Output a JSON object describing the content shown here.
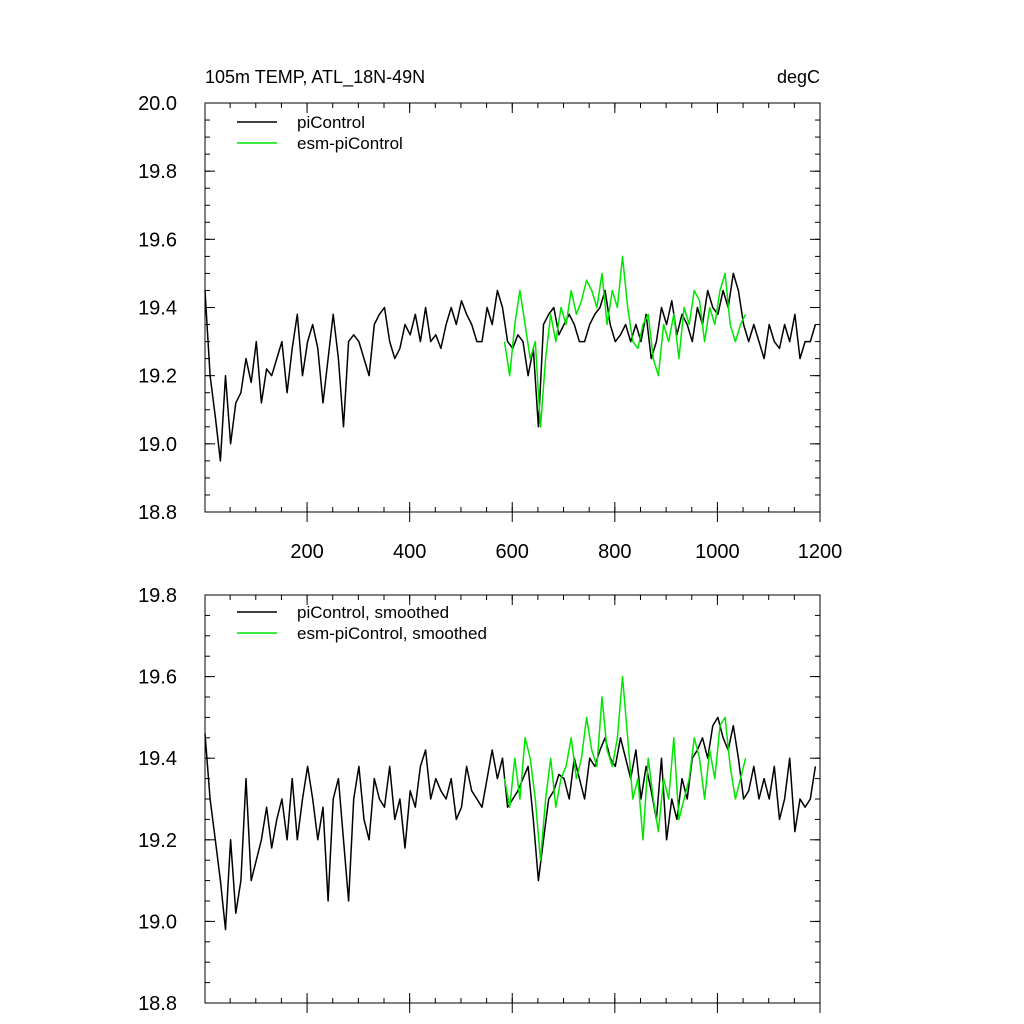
{
  "chart_data": [
    {
      "type": "line",
      "title": "105m TEMP, ATL_18N-49N",
      "units": "degC",
      "xlabel": "",
      "ylabel": "",
      "xlim": [
        1,
        1200
      ],
      "ylim": [
        18.8,
        20.0
      ],
      "x_ticks": [
        200,
        400,
        600,
        800,
        1000,
        1200
      ],
      "x_tick_labels": [
        "200",
        "400",
        "600",
        "800",
        "1000",
        "1200"
      ],
      "y_ticks": [
        18.8,
        19.0,
        19.2,
        19.4,
        19.6,
        19.8,
        20.0
      ],
      "y_tick_labels": [
        "18.8",
        "19.0",
        "19.2",
        "19.4",
        "19.6",
        "19.8",
        "20.0"
      ],
      "legend_position": "top-left",
      "series": [
        {
          "name": "piControl",
          "color": "#000000",
          "x_start": 1,
          "x_step": 10,
          "values": [
            19.45,
            19.2,
            19.08,
            18.95,
            19.2,
            19.0,
            19.12,
            19.15,
            19.25,
            19.18,
            19.3,
            19.12,
            19.22,
            19.2,
            19.25,
            19.3,
            19.15,
            19.28,
            19.38,
            19.2,
            19.3,
            19.35,
            19.28,
            19.12,
            19.25,
            19.38,
            19.25,
            19.05,
            19.3,
            19.32,
            19.3,
            19.25,
            19.2,
            19.35,
            19.38,
            19.4,
            19.3,
            19.25,
            19.28,
            19.35,
            19.32,
            19.38,
            19.3,
            19.4,
            19.3,
            19.32,
            19.28,
            19.35,
            19.4,
            19.35,
            19.42,
            19.38,
            19.35,
            19.3,
            19.3,
            19.4,
            19.35,
            19.45,
            19.4,
            19.3,
            19.28,
            19.32,
            19.3,
            19.2,
            19.28,
            19.05,
            19.35,
            19.38,
            19.4,
            19.32,
            19.35,
            19.38,
            19.35,
            19.3,
            19.3,
            19.35,
            19.38,
            19.4,
            19.45,
            19.35,
            19.3,
            19.32,
            19.35,
            19.3,
            19.35,
            19.3,
            19.38,
            19.25,
            19.3,
            19.4,
            19.35,
            19.42,
            19.32,
            19.38,
            19.35,
            19.3,
            19.4,
            19.35,
            19.45,
            19.4,
            19.38,
            19.45,
            19.4,
            19.5,
            19.45,
            19.35,
            19.3,
            19.35,
            19.3,
            19.25,
            19.35,
            19.3,
            19.28,
            19.35,
            19.3,
            19.38,
            19.25,
            19.3,
            19.3,
            19.35
          ]
        },
        {
          "name": "esm-piControl",
          "color": "#00e600",
          "x_start": 585,
          "x_step": 10,
          "values": [
            19.3,
            19.2,
            19.35,
            19.45,
            19.35,
            19.25,
            19.3,
            19.05,
            19.25,
            19.38,
            19.3,
            19.4,
            19.35,
            19.45,
            19.38,
            19.42,
            19.48,
            19.45,
            19.4,
            19.5,
            19.35,
            19.45,
            19.4,
            19.55,
            19.4,
            19.3,
            19.28,
            19.35,
            19.38,
            19.25,
            19.2,
            19.35,
            19.3,
            19.38,
            19.25,
            19.4,
            19.35,
            19.45,
            19.42,
            19.3,
            19.4,
            19.35,
            19.45,
            19.5,
            19.35,
            19.3,
            19.35,
            19.38
          ]
        }
      ]
    },
    {
      "type": "line",
      "title": "",
      "xlabel": "",
      "ylabel": "",
      "xlim": [
        1,
        1200
      ],
      "ylim": [
        18.8,
        19.8
      ],
      "x_ticks": [
        200,
        400,
        600,
        800,
        1000,
        1200
      ],
      "x_tick_labels": [],
      "y_ticks": [
        18.8,
        19.0,
        19.2,
        19.4,
        19.6,
        19.8
      ],
      "y_tick_labels": [
        "18.8",
        "19.0",
        "19.2",
        "19.4",
        "19.6",
        "19.8"
      ],
      "legend_position": "top-left",
      "series": [
        {
          "name": "piControl, smoothed",
          "color": "#000000",
          "x_start": 1,
          "x_step": 10,
          "values": [
            19.46,
            19.3,
            19.2,
            19.1,
            18.98,
            19.2,
            19.02,
            19.1,
            19.35,
            19.1,
            19.15,
            19.2,
            19.28,
            19.18,
            19.25,
            19.3,
            19.2,
            19.35,
            19.2,
            19.3,
            19.38,
            19.3,
            19.2,
            19.28,
            19.05,
            19.3,
            19.35,
            19.2,
            19.05,
            19.3,
            19.38,
            19.25,
            19.2,
            19.35,
            19.3,
            19.28,
            19.38,
            19.25,
            19.3,
            19.18,
            19.32,
            19.28,
            19.38,
            19.42,
            19.3,
            19.35,
            19.32,
            19.3,
            19.35,
            19.25,
            19.28,
            19.38,
            19.32,
            19.3,
            19.28,
            19.35,
            19.42,
            19.35,
            19.4,
            19.28,
            19.3,
            19.32,
            19.35,
            19.38,
            19.25,
            19.1,
            19.2,
            19.3,
            19.32,
            19.36,
            19.35,
            19.3,
            19.4,
            19.35,
            19.3,
            19.4,
            19.38,
            19.42,
            19.45,
            19.4,
            19.38,
            19.45,
            19.4,
            19.35,
            19.42,
            19.3,
            19.38,
            19.32,
            19.25,
            19.4,
            19.2,
            19.3,
            19.25,
            19.35,
            19.3,
            19.4,
            19.42,
            19.45,
            19.4,
            19.48,
            19.5,
            19.45,
            19.42,
            19.48,
            19.4,
            19.3,
            19.32,
            19.38,
            19.3,
            19.35,
            19.3,
            19.38,
            19.25,
            19.3,
            19.4,
            19.22,
            19.3,
            19.28,
            19.3,
            19.38
          ]
        },
        {
          "name": "esm-piControl, smoothed",
          "color": "#00e600",
          "x_start": 585,
          "x_step": 10,
          "values": [
            19.35,
            19.28,
            19.4,
            19.3,
            19.45,
            19.4,
            19.3,
            19.15,
            19.3,
            19.4,
            19.28,
            19.35,
            19.38,
            19.45,
            19.35,
            19.4,
            19.5,
            19.42,
            19.38,
            19.55,
            19.42,
            19.38,
            19.45,
            19.6,
            19.45,
            19.3,
            19.35,
            19.2,
            19.4,
            19.3,
            19.22,
            19.35,
            19.3,
            19.45,
            19.25,
            19.3,
            19.35,
            19.45,
            19.4,
            19.3,
            19.42,
            19.35,
            19.48,
            19.5,
            19.38,
            19.3,
            19.35,
            19.4
          ]
        }
      ]
    }
  ]
}
